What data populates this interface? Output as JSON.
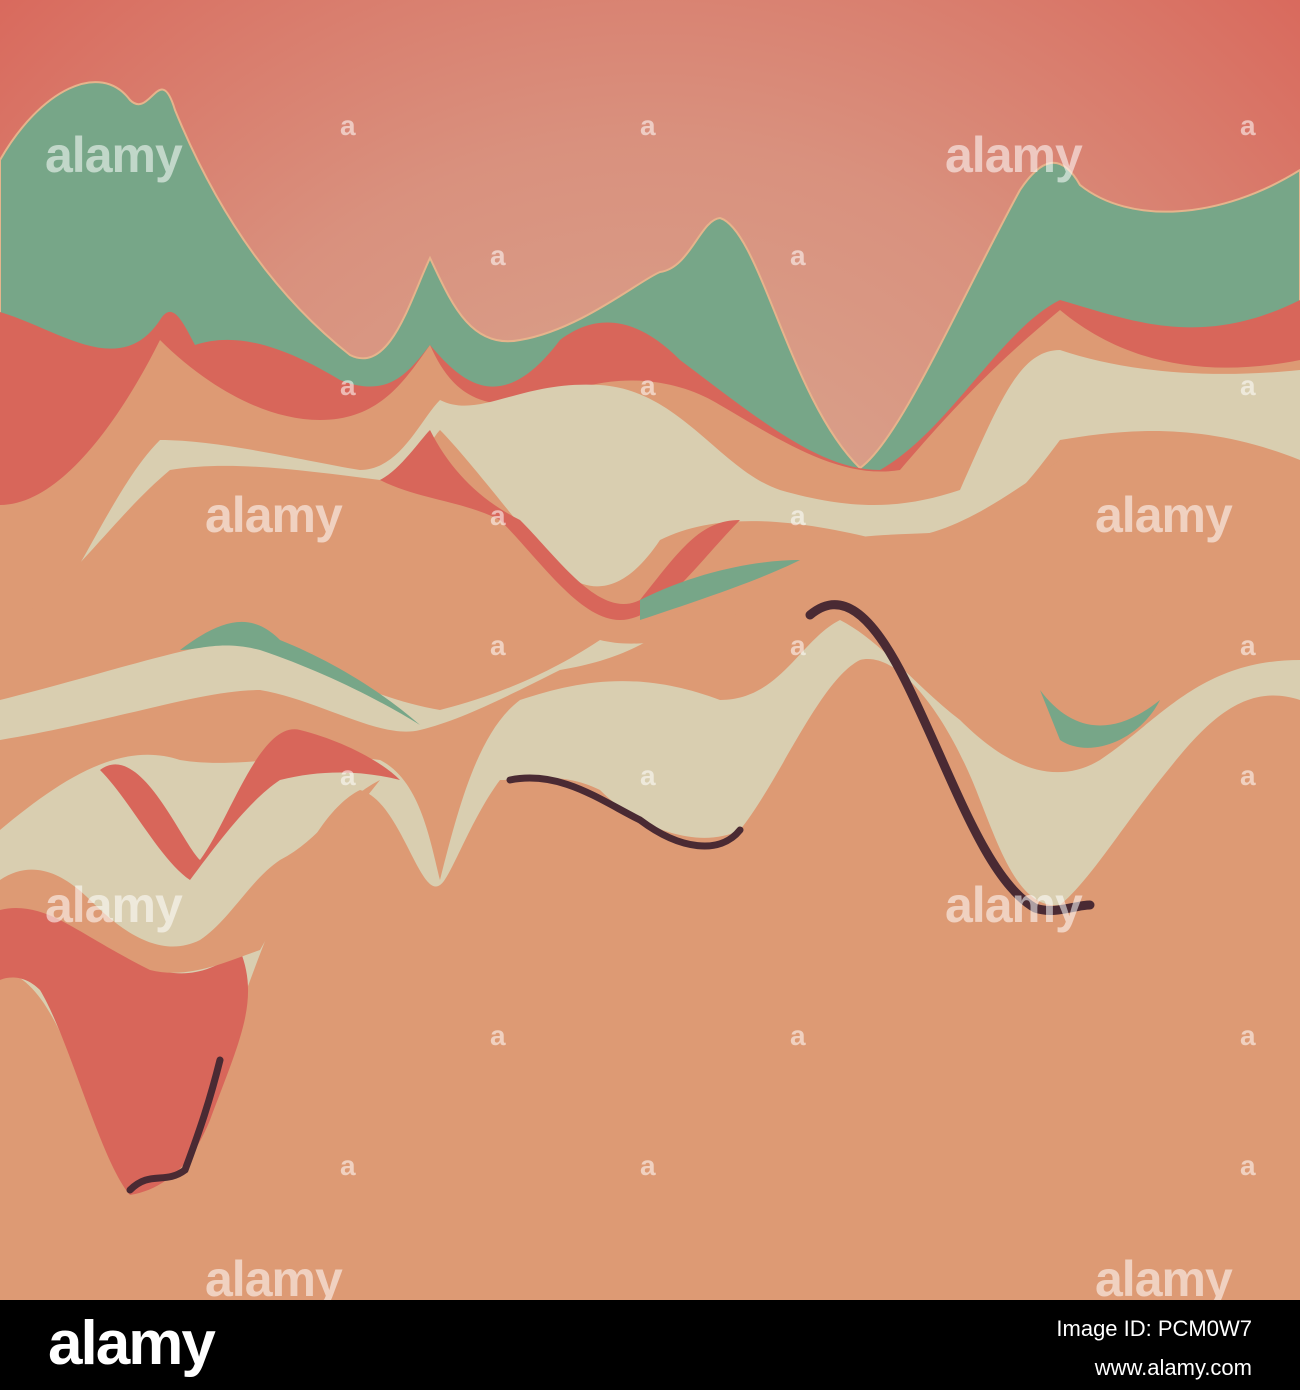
{
  "watermark": {
    "logo": "alamy",
    "small": "a"
  },
  "footer": {
    "logo": "alamy",
    "image_id": "Image ID: PCM0W7",
    "url": "www.alamy.com"
  }
}
